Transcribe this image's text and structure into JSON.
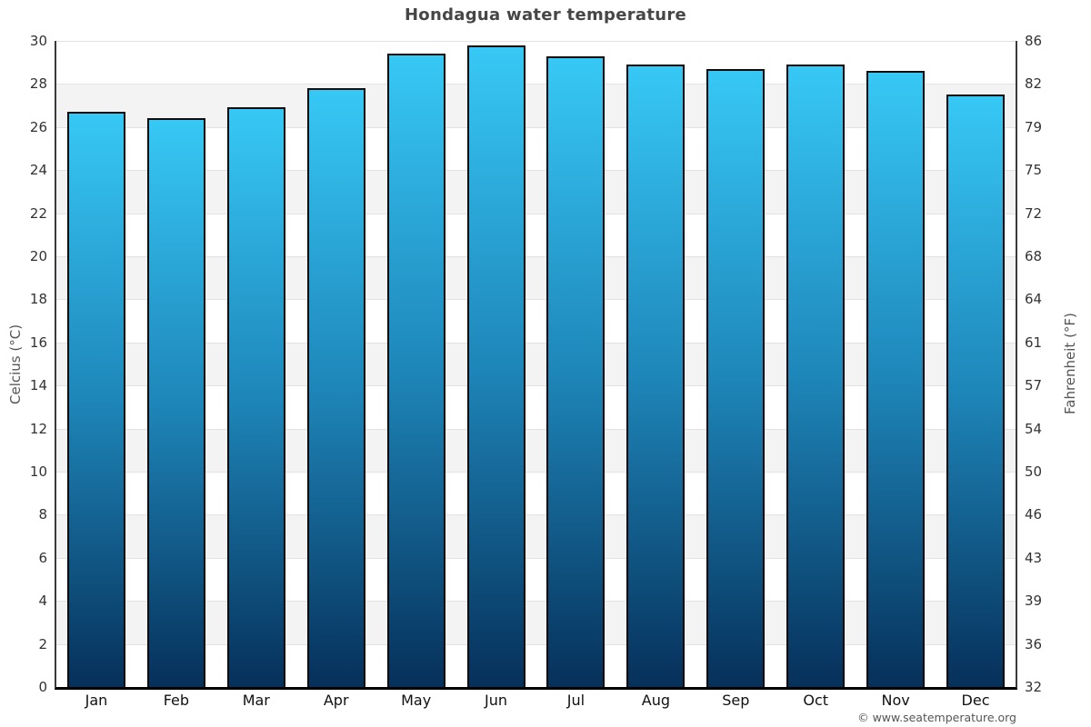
{
  "title": "Hondagua water temperature",
  "footer": {
    "copyright": "© www.seatemperature.org"
  },
  "chart_data": {
    "type": "bar",
    "title": "Hondagua water temperature",
    "categories": [
      "Jan",
      "Feb",
      "Mar",
      "Apr",
      "May",
      "Jun",
      "Jul",
      "Aug",
      "Sep",
      "Oct",
      "Nov",
      "Dec"
    ],
    "series": [
      {
        "name": "Water temperature (°C)",
        "values": [
          26.7,
          26.4,
          26.9,
          27.8,
          29.4,
          29.8,
          29.3,
          28.9,
          28.7,
          28.9,
          28.6,
          27.5
        ]
      }
    ],
    "ylabel_left": "Celcius (°C)",
    "ylabel_right": "Fahrenheit (°F)",
    "ylim": [
      0,
      30
    ],
    "ytick_step": 2,
    "yticks_celsius": [
      30,
      28,
      26,
      24,
      22,
      20,
      18,
      16,
      14,
      12,
      10,
      8,
      6,
      4,
      2,
      0
    ],
    "yticks_fahrenheit": [
      "86",
      "82",
      "79",
      "75",
      "72",
      "68",
      "64",
      "61",
      "57",
      "54",
      "50",
      "46",
      "43",
      "39",
      "36",
      "32"
    ],
    "grid": "horizontal gridlines every 2°C with alternating white/gray bands",
    "legend": "none",
    "colors": {
      "bar_gradient_top": "#37c8f5",
      "bar_gradient_mid": "#1e86b9",
      "bar_gradient_bottom": "#06305a",
      "bar_border": "#0c0c0c",
      "band_gray": "#f3f3f3",
      "gridline": "#e2e2e2",
      "axis_line": "#3a3a3a",
      "bottom_axis": "#000000",
      "title_text": "#464646",
      "tick_text": "#333333",
      "month_text": "#111111",
      "axis_title_text": "#555555",
      "copyright_text": "#555555"
    }
  }
}
